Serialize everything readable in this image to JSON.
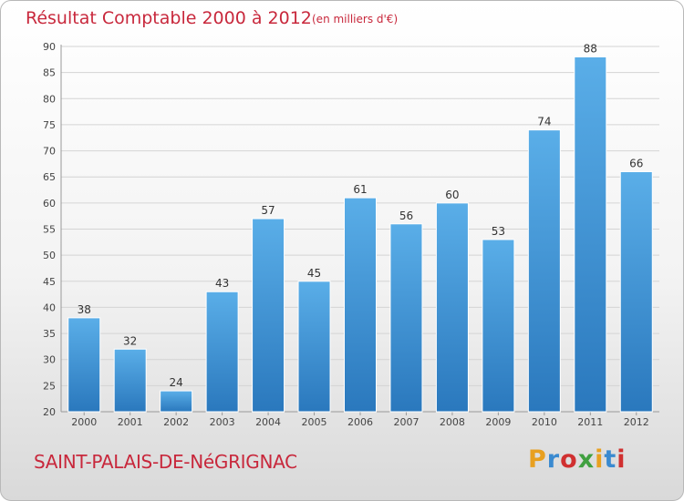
{
  "header": {
    "title": "Résultat Comptable 2000 à 2012",
    "subtitle": "(en milliers d'€)"
  },
  "footer": {
    "commune": "SAINT-PALAIS-DE-NéGRIGNAC",
    "logo_text": "Proxiti",
    "logo_colors": [
      "#e8a020",
      "#3a8ad0",
      "#d03030",
      "#40a040",
      "#e8a020",
      "#3a8ad0",
      "#d03030"
    ]
  },
  "chart_data": {
    "type": "bar",
    "title": "Résultat Comptable 2000 à 2012",
    "subtitle": "(en milliers d'€)",
    "categories": [
      "2000",
      "2001",
      "2002",
      "2003",
      "2004",
      "2005",
      "2006",
      "2007",
      "2008",
      "2009",
      "2010",
      "2011",
      "2012"
    ],
    "values": [
      38,
      32,
      24,
      43,
      57,
      45,
      61,
      56,
      60,
      53,
      74,
      88,
      66
    ],
    "ylim": [
      20,
      90
    ],
    "yticks": [
      20,
      25,
      30,
      35,
      40,
      45,
      50,
      55,
      60,
      65,
      70,
      75,
      80,
      85,
      90
    ],
    "xlabel": "",
    "ylabel": "",
    "grid": true,
    "bar_color": "#3d93d6"
  }
}
